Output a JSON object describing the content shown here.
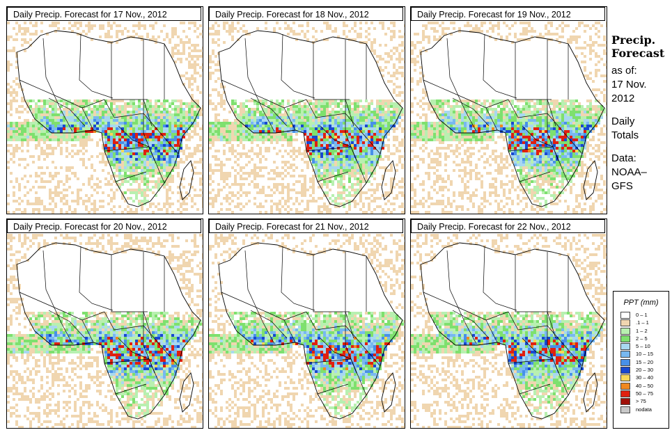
{
  "panels": [
    {
      "title": "Daily Precip. Forecast for  17 Nov., 2012",
      "day": 17
    },
    {
      "title": "Daily Precip. Forecast for  18 Nov., 2012",
      "day": 18
    },
    {
      "title": "Daily Precip. Forecast for  19 Nov., 2012",
      "day": 19
    },
    {
      "title": "Daily Precip. Forecast for  20 Nov., 2012",
      "day": 20
    },
    {
      "title": "Daily Precip. Forecast for  21 Nov., 2012",
      "day": 21
    },
    {
      "title": "Daily Precip. Forecast for  22 Nov., 2012",
      "day": 22
    }
  ],
  "side": {
    "heading1": "Precip.",
    "heading2": "Forecast",
    "as_of": "as of:",
    "date1": "17 Nov.",
    "date2": "2012",
    "totals1": "Daily",
    "totals2": "Totals",
    "data1": "Data:",
    "data2": "NOAA–",
    "data3": "GFS"
  },
  "legend": {
    "title": "PPT (mm)",
    "items": [
      {
        "label": "0 – 1",
        "color": "#ffffff"
      },
      {
        "label": ".1 – 1",
        "color": "#f0d6b0"
      },
      {
        "label": "1 – 2",
        "color": "#b8f0b0"
      },
      {
        "label": "2 – 5",
        "color": "#7ee06e"
      },
      {
        "label": "5 – 10",
        "color": "#a8d8f0"
      },
      {
        "label": "10 – 15",
        "color": "#78b8f0"
      },
      {
        "label": "15 – 20",
        "color": "#4890e8"
      },
      {
        "label": "20 – 30",
        "color": "#1848d0"
      },
      {
        "label": "30 – 40",
        "color": "#f8d858"
      },
      {
        "label": "40 – 50",
        "color": "#f08820"
      },
      {
        "label": "50 – 75",
        "color": "#e02010"
      },
      {
        "label": "> 75",
        "color": "#a01008"
      },
      {
        "label": "nodata",
        "color": "#c8c8c8"
      }
    ]
  }
}
